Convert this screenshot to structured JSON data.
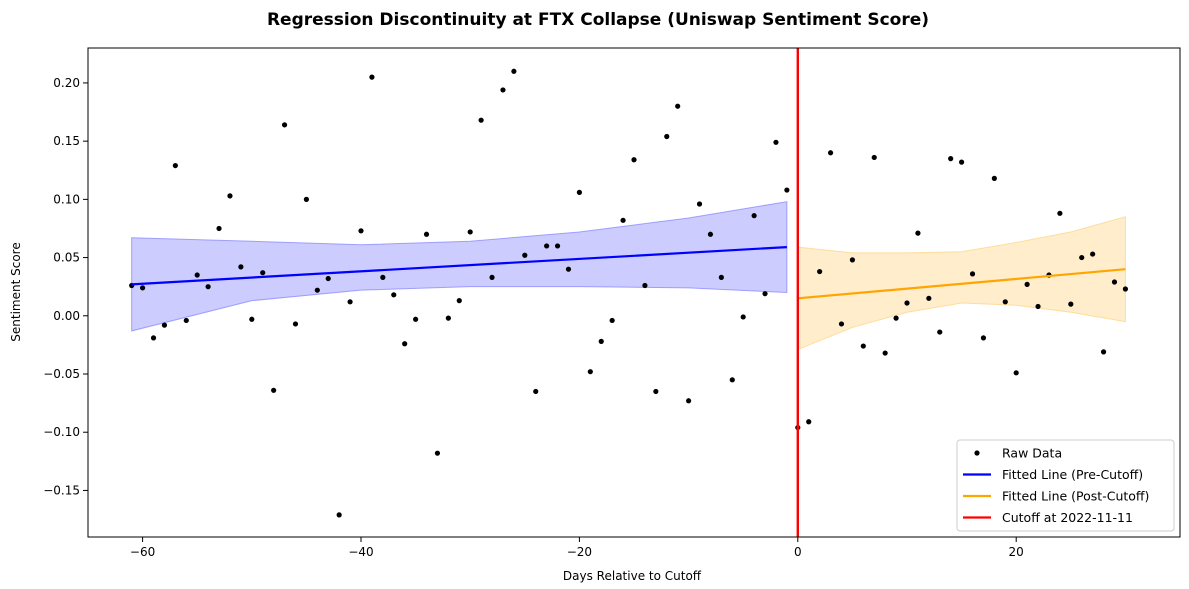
{
  "chart_data": {
    "type": "scatter",
    "title": "Regression Discontinuity at FTX Collapse (Uniswap Sentiment Score)",
    "xlabel": "Days Relative to Cutoff",
    "ylabel": "Sentiment Score",
    "xlim": [
      -65,
      35
    ],
    "ylim": [
      -0.19,
      0.23
    ],
    "xticks": [
      -60,
      -40,
      -20,
      0,
      20
    ],
    "xtick_labels": [
      "−60",
      "−40",
      "−20",
      "0",
      "20"
    ],
    "yticks": [
      -0.15,
      -0.1,
      -0.05,
      0.0,
      0.05,
      0.1,
      0.15,
      0.2
    ],
    "ytick_labels": [
      "−0.15",
      "−0.10",
      "−0.05",
      "0.00",
      "0.05",
      "0.10",
      "0.15",
      "0.20"
    ],
    "legend_placement": "lower-right",
    "series": [
      {
        "name": "Raw Data",
        "kind": "scatter",
        "color": "#000000",
        "points": [
          [
            -61,
            0.026
          ],
          [
            -60,
            0.024
          ],
          [
            -59,
            -0.019
          ],
          [
            -58,
            -0.008
          ],
          [
            -57,
            0.129
          ],
          [
            -56,
            -0.004
          ],
          [
            -55,
            0.035
          ],
          [
            -54,
            0.025
          ],
          [
            -53,
            0.075
          ],
          [
            -52,
            0.103
          ],
          [
            -51,
            0.042
          ],
          [
            -50,
            -0.003
          ],
          [
            -49,
            0.037
          ],
          [
            -48,
            -0.064
          ],
          [
            -47,
            0.164
          ],
          [
            -46,
            -0.007
          ],
          [
            -45,
            0.1
          ],
          [
            -44,
            0.022
          ],
          [
            -43,
            0.032
          ],
          [
            -42,
            -0.171
          ],
          [
            -41,
            0.012
          ],
          [
            -40,
            0.073
          ],
          [
            -39,
            0.205
          ],
          [
            -38,
            0.033
          ],
          [
            -37,
            0.018
          ],
          [
            -36,
            -0.024
          ],
          [
            -35,
            -0.003
          ],
          [
            -34,
            0.07
          ],
          [
            -33,
            -0.118
          ],
          [
            -32,
            -0.002
          ],
          [
            -31,
            0.013
          ],
          [
            -30,
            0.072
          ],
          [
            -29,
            0.168
          ],
          [
            -28,
            0.033
          ],
          [
            -27,
            0.194
          ],
          [
            -26,
            0.21
          ],
          [
            -25,
            0.052
          ],
          [
            -24,
            -0.065
          ],
          [
            -23,
            0.06
          ],
          [
            -22,
            0.06
          ],
          [
            -21,
            0.04
          ],
          [
            -20,
            0.106
          ],
          [
            -19,
            -0.048
          ],
          [
            -18,
            -0.022
          ],
          [
            -17,
            -0.004
          ],
          [
            -16,
            0.082
          ],
          [
            -15,
            0.134
          ],
          [
            -14,
            0.026
          ],
          [
            -13,
            -0.065
          ],
          [
            -12,
            0.154
          ],
          [
            -11,
            0.18
          ],
          [
            -10,
            -0.073
          ],
          [
            -9,
            0.096
          ],
          [
            -8,
            0.07
          ],
          [
            -7,
            0.033
          ],
          [
            -6,
            -0.055
          ],
          [
            -5,
            -0.001
          ],
          [
            -4,
            0.086
          ],
          [
            -3,
            0.019
          ],
          [
            -2,
            0.149
          ],
          [
            -1,
            0.108
          ],
          [
            0,
            -0.096
          ],
          [
            1,
            -0.091
          ],
          [
            2,
            0.038
          ],
          [
            3,
            0.14
          ],
          [
            4,
            -0.007
          ],
          [
            5,
            0.048
          ],
          [
            6,
            -0.026
          ],
          [
            7,
            0.136
          ],
          [
            8,
            -0.032
          ],
          [
            9,
            -0.002
          ],
          [
            10,
            0.011
          ],
          [
            11,
            0.071
          ],
          [
            12,
            0.015
          ],
          [
            13,
            -0.014
          ],
          [
            14,
            0.135
          ],
          [
            15,
            0.132
          ],
          [
            16,
            0.036
          ],
          [
            17,
            -0.019
          ],
          [
            18,
            0.118
          ],
          [
            19,
            0.012
          ],
          [
            20,
            -0.049
          ],
          [
            21,
            0.027
          ],
          [
            22,
            0.008
          ],
          [
            23,
            0.035
          ],
          [
            24,
            0.088
          ],
          [
            25,
            0.01
          ],
          [
            26,
            0.05
          ],
          [
            27,
            0.053
          ],
          [
            28,
            -0.031
          ],
          [
            29,
            0.029
          ],
          [
            30,
            0.023
          ]
        ]
      },
      {
        "name": "Fitted Line (Pre-Cutoff)",
        "kind": "line",
        "color": "#0000ff",
        "band_color": "#8080ff",
        "x_start": -61,
        "x_end": -1,
        "y_start": 0.027,
        "y_end": 0.059,
        "band": [
          [
            -61,
            -0.013,
            0.067
          ],
          [
            -50,
            0.013,
            0.064
          ],
          [
            -40,
            0.022,
            0.061
          ],
          [
            -30,
            0.025,
            0.064
          ],
          [
            -20,
            0.025,
            0.072
          ],
          [
            -10,
            0.024,
            0.084
          ],
          [
            -1,
            0.02,
            0.098
          ]
        ]
      },
      {
        "name": "Fitted Line (Post-Cutoff)",
        "kind": "line",
        "color": "#ffa500",
        "band_color": "#ffd27f",
        "x_start": 0,
        "x_end": 30,
        "y_start": 0.015,
        "y_end": 0.04,
        "band": [
          [
            0,
            -0.029,
            0.059
          ],
          [
            5,
            -0.01,
            0.054
          ],
          [
            10,
            0.003,
            0.054
          ],
          [
            15,
            0.011,
            0.055
          ],
          [
            20,
            0.009,
            0.063
          ],
          [
            25,
            0.003,
            0.072
          ],
          [
            30,
            -0.005,
            0.085
          ]
        ]
      },
      {
        "name": "Cutoff at 2022-11-11",
        "kind": "vline",
        "color": "#ff0000",
        "x": 0
      }
    ]
  }
}
